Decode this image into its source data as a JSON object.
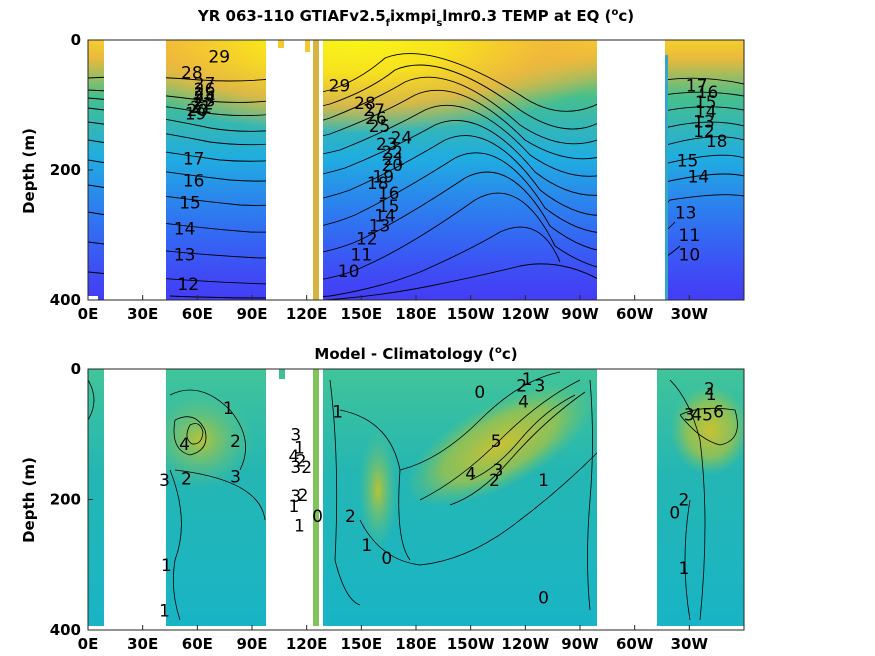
{
  "chart_data": [
    {
      "type": "heatmap",
      "title_parts": [
        "YR 063-110 GTIAFv2.5",
        "f",
        "ixmpi",
        "s",
        "lmr0.3 TEMP at EQ (",
        "o",
        "c)"
      ],
      "ylabel": "Depth (m)",
      "xticks": [
        "0E",
        "30E",
        "60E",
        "90E",
        "120E",
        "150E",
        "180E",
        "150W",
        "120W",
        "90W",
        "60W",
        "30W"
      ],
      "yticks": [
        "0",
        "200",
        "400"
      ],
      "ylim": [
        400,
        0
      ],
      "xlim_deg_east": [
        0,
        360
      ],
      "colormap": "parula",
      "contour_labels": [
        {
          "v": "29",
          "x": 72,
          "y": 25
        },
        {
          "v": "28",
          "x": 57,
          "y": 50
        },
        {
          "v": "27",
          "x": 64,
          "y": 67
        },
        {
          "v": "26",
          "x": 64,
          "y": 75
        },
        {
          "v": "25",
          "x": 64,
          "y": 82
        },
        {
          "v": "24",
          "x": 64,
          "y": 88
        },
        {
          "v": "23",
          "x": 64,
          "y": 93
        },
        {
          "v": "22",
          "x": 63,
          "y": 98
        },
        {
          "v": "21",
          "x": 62,
          "y": 103
        },
        {
          "v": "20",
          "x": 60,
          "y": 108
        },
        {
          "v": "19",
          "x": 59,
          "y": 113
        },
        {
          "v": "17",
          "x": 58,
          "y": 182
        },
        {
          "v": "16",
          "x": 58,
          "y": 216
        },
        {
          "v": "15",
          "x": 56,
          "y": 250
        },
        {
          "v": "14",
          "x": 53,
          "y": 290
        },
        {
          "v": "13",
          "x": 53,
          "y": 330
        },
        {
          "v": "12",
          "x": 55,
          "y": 375
        },
        {
          "v": "29",
          "x": 138,
          "y": 70
        },
        {
          "v": "28",
          "x": 152,
          "y": 97
        },
        {
          "v": "27",
          "x": 157,
          "y": 108
        },
        {
          "v": "26",
          "x": 158,
          "y": 120
        },
        {
          "v": "25",
          "x": 160,
          "y": 132
        },
        {
          "v": "24",
          "x": 172,
          "y": 150
        },
        {
          "v": "23",
          "x": 164,
          "y": 160
        },
        {
          "v": "22",
          "x": 167,
          "y": 172
        },
        {
          "v": "21",
          "x": 168,
          "y": 183
        },
        {
          "v": "20",
          "x": 167,
          "y": 192
        },
        {
          "v": "19",
          "x": 162,
          "y": 210
        },
        {
          "v": "18",
          "x": 159,
          "y": 220
        },
        {
          "v": "16",
          "x": 165,
          "y": 235
        },
        {
          "v": "15",
          "x": 165,
          "y": 255
        },
        {
          "v": "14",
          "x": 163,
          "y": 270
        },
        {
          "v": "13",
          "x": 160,
          "y": 285
        },
        {
          "v": "12",
          "x": 153,
          "y": 305
        },
        {
          "v": "11",
          "x": 150,
          "y": 330
        },
        {
          "v": "10",
          "x": 143,
          "y": 355
        },
        {
          "v": "17",
          "x": 334,
          "y": 70
        },
        {
          "v": "16",
          "x": 340,
          "y": 80
        },
        {
          "v": "15",
          "x": 339,
          "y": 95
        },
        {
          "v": "14",
          "x": 339,
          "y": 110
        },
        {
          "v": "13",
          "x": 338,
          "y": 125
        },
        {
          "v": "12",
          "x": 338,
          "y": 140
        },
        {
          "v": "18",
          "x": 345,
          "y": 155
        },
        {
          "v": "15",
          "x": 329,
          "y": 185
        },
        {
          "v": "14",
          "x": 335,
          "y": 210
        },
        {
          "v": "13",
          "x": 328,
          "y": 265
        },
        {
          "v": "11",
          "x": 330,
          "y": 300
        },
        {
          "v": "10",
          "x": 330,
          "y": 330
        }
      ]
    },
    {
      "type": "heatmap",
      "title_parts": [
        "Model - Climatology (",
        "o",
        "c)"
      ],
      "ylabel": "Depth (m)",
      "xticks": [
        "0E",
        "30E",
        "60E",
        "90E",
        "120E",
        "150E",
        "180E",
        "150W",
        "120W",
        "90W",
        "60W",
        "30W"
      ],
      "yticks": [
        "0",
        "200",
        "400"
      ],
      "ylim": [
        400,
        0
      ],
      "xlim_deg_east": [
        0,
        360
      ],
      "colormap": "parula",
      "contour_labels": [
        {
          "v": "1",
          "x": 77,
          "y": 60
        },
        {
          "v": "2",
          "x": 81,
          "y": 110
        },
        {
          "v": "4",
          "x": 53,
          "y": 115
        },
        {
          "v": "3",
          "x": 42,
          "y": 170
        },
        {
          "v": "2",
          "x": 54,
          "y": 168
        },
        {
          "v": "3",
          "x": 81,
          "y": 165
        },
        {
          "v": "1",
          "x": 43,
          "y": 300
        },
        {
          "v": "1",
          "x": 42,
          "y": 370
        },
        {
          "v": "3",
          "x": 114,
          "y": 100
        },
        {
          "v": "1",
          "x": 116,
          "y": 120
        },
        {
          "v": "4",
          "x": 113,
          "y": 133
        },
        {
          "v": "2",
          "x": 117,
          "y": 140
        },
        {
          "v": "3",
          "x": 114,
          "y": 150
        },
        {
          "v": "2",
          "x": 120,
          "y": 150
        },
        {
          "v": "1",
          "x": 113,
          "y": 210
        },
        {
          "v": "3",
          "x": 114,
          "y": 195
        },
        {
          "v": "2",
          "x": 118,
          "y": 193
        },
        {
          "v": "1",
          "x": 116,
          "y": 240
        },
        {
          "v": "0",
          "x": 126,
          "y": 225
        },
        {
          "v": "1",
          "x": 137,
          "y": 65
        },
        {
          "v": "2",
          "x": 144,
          "y": 225
        },
        {
          "v": "1",
          "x": 153,
          "y": 270
        },
        {
          "v": "0",
          "x": 164,
          "y": 290
        },
        {
          "v": "0",
          "x": 215,
          "y": 35
        },
        {
          "v": "2",
          "x": 238,
          "y": 25
        },
        {
          "v": "1",
          "x": 241,
          "y": 15
        },
        {
          "v": "3",
          "x": 248,
          "y": 25
        },
        {
          "v": "4",
          "x": 239,
          "y": 50
        },
        {
          "v": "5",
          "x": 224,
          "y": 110
        },
        {
          "v": "4",
          "x": 210,
          "y": 160
        },
        {
          "v": "3",
          "x": 225,
          "y": 155
        },
        {
          "v": "2",
          "x": 223,
          "y": 170
        },
        {
          "v": "1",
          "x": 250,
          "y": 170
        },
        {
          "v": "0",
          "x": 250,
          "y": 350
        },
        {
          "v": "2",
          "x": 341,
          "y": 30
        },
        {
          "v": "1",
          "x": 342,
          "y": 38
        },
        {
          "v": "6",
          "x": 346,
          "y": 65
        },
        {
          "v": "5",
          "x": 340,
          "y": 70
        },
        {
          "v": "4",
          "x": 334,
          "y": 70
        },
        {
          "v": "3",
          "x": 330,
          "y": 70
        },
        {
          "v": "2",
          "x": 327,
          "y": 200
        },
        {
          "v": "0",
          "x": 322,
          "y": 220
        },
        {
          "v": "1",
          "x": 327,
          "y": 305
        }
      ]
    }
  ]
}
